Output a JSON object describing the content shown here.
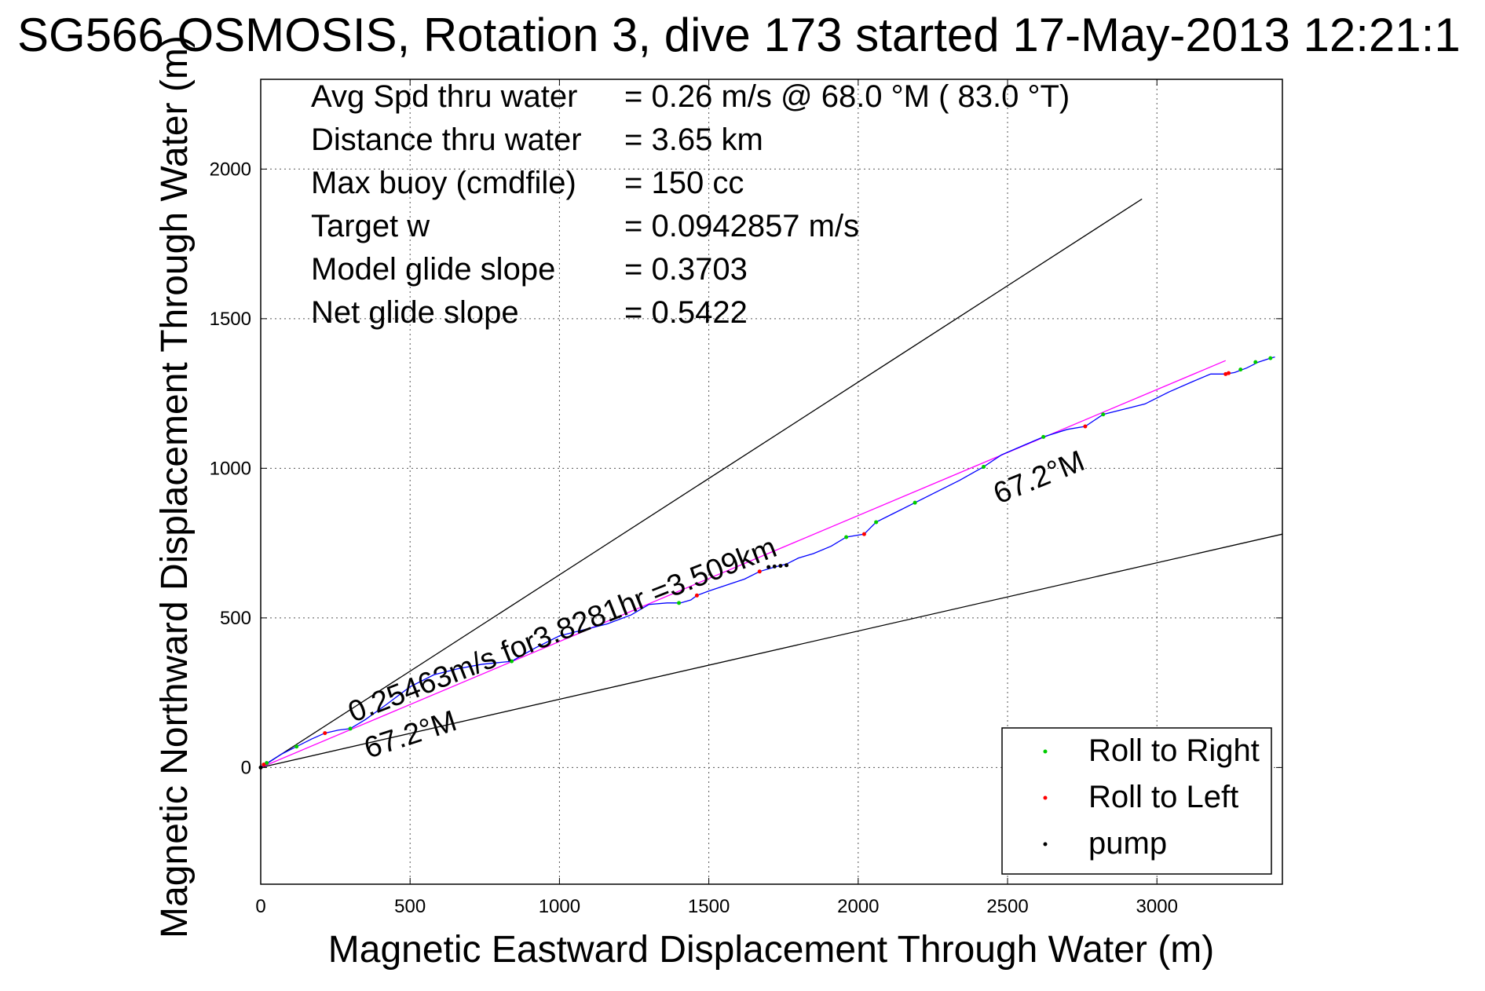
{
  "title": "SG566 OSMOSIS, Rotation 3, dive 173 started 17-May-2013 12:21:1",
  "chart_data": {
    "type": "line",
    "xlabel": "Magnetic Eastward Displacement Through Water (m)",
    "ylabel": "Magnetic Northward Displacement Through Water (m)",
    "xlim": [
      0,
      3420
    ],
    "ylim": [
      -390,
      2300
    ],
    "xticks": [
      0,
      500,
      1000,
      1500,
      2000,
      2500,
      3000
    ],
    "yticks": [
      0,
      500,
      1000,
      1500,
      2000
    ],
    "grid": true,
    "legend_position": "bottom-right",
    "info_block": [
      {
        "label": "Avg Spd thru water",
        "value": "=  0.26 m/s @  68.0 °M ( 83.0 °T)"
      },
      {
        "label": "Distance thru water",
        "value": "=  3.65 km"
      },
      {
        "label": "Max buoy (cmdfile)",
        "value": "= 150 cc"
      },
      {
        "label": "Target w",
        "value": "= 0.0942857 m/s"
      },
      {
        "label": "Model glide slope",
        "value": "= 0.3703"
      },
      {
        "label": "Net glide slope",
        "value": "= 0.5422"
      }
    ],
    "annotations": [
      {
        "text": "0.25463m/s for3.8281hr =3.509km",
        "x": 310,
        "y": 150,
        "angle_deg": 21.5
      },
      {
        "text": "67.2°M",
        "x": 360,
        "y": 30,
        "angle_deg": 18
      },
      {
        "text": "67.2°M",
        "x": 2470,
        "y": 880,
        "angle_deg": 22
      }
    ],
    "reference_lines": [
      {
        "name": "upper-bound",
        "x": [
          0,
          2950
        ],
        "y": [
          0,
          1900
        ],
        "color": "#000000"
      },
      {
        "name": "lower-bound",
        "x": [
          0,
          3420
        ],
        "y": [
          0,
          780
        ],
        "color": "#000000"
      },
      {
        "name": "net-track",
        "x": [
          0,
          3230
        ],
        "y": [
          0,
          1360
        ],
        "color": "#ff00ff"
      }
    ],
    "series": [
      {
        "name": "track",
        "color": "#0000ff",
        "x": [
          0,
          30,
          70,
          120,
          170,
          215,
          260,
          300,
          350,
          420,
          500,
          580,
          660,
          740,
          840,
          920,
          1000,
          1080,
          1160,
          1240,
          1300,
          1360,
          1405,
          1440,
          1460,
          1500,
          1560,
          1620,
          1670,
          1720,
          1760,
          1800,
          1850,
          1910,
          1960,
          2020,
          2060,
          2120,
          2190,
          2260,
          2340,
          2420,
          2480,
          2550,
          2620,
          2700,
          2760,
          2820,
          2900,
          2960,
          3040,
          3120,
          3180,
          3230,
          3260,
          3300,
          3340,
          3380,
          3395
        ],
        "y": [
          0,
          20,
          45,
          70,
          95,
          115,
          125,
          130,
          160,
          210,
          270,
          310,
          330,
          345,
          355,
          400,
          440,
          460,
          480,
          510,
          545,
          550,
          550,
          560,
          575,
          590,
          610,
          630,
          655,
          670,
          680,
          700,
          715,
          740,
          770,
          780,
          820,
          850,
          885,
          920,
          960,
          1005,
          1045,
          1075,
          1105,
          1130,
          1140,
          1180,
          1200,
          1215,
          1255,
          1290,
          1315,
          1315,
          1320,
          1335,
          1355,
          1368,
          1372
        ]
      }
    ],
    "markers": [
      {
        "name": "Roll to Right",
        "color": "#00cc00",
        "x": [
          20,
          120,
          300,
          840,
          1400,
          1960,
          2060,
          2190,
          2420,
          2620,
          2820,
          3280,
          3330,
          3380
        ],
        "y": [
          15,
          70,
          130,
          355,
          550,
          770,
          820,
          885,
          1005,
          1105,
          1180,
          1330,
          1355,
          1368
        ]
      },
      {
        "name": "Roll to Left",
        "color": "#ff0000",
        "x": [
          10,
          215,
          1460,
          1670,
          2020,
          2760,
          3230,
          3240
        ],
        "y": [
          10,
          115,
          575,
          655,
          780,
          1140,
          1315,
          1318
        ]
      },
      {
        "name": "pump",
        "color": "#000000",
        "x": [
          0,
          1700,
          1720,
          1740,
          1760
        ],
        "y": [
          0,
          670,
          672,
          674,
          676
        ]
      }
    ]
  }
}
